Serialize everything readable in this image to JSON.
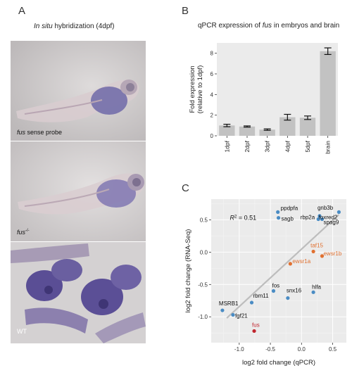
{
  "panel_a": {
    "letter": "A",
    "title_italic": "In situ",
    "title_rest": " hybridization (4dpf)",
    "images": [
      {
        "label_italic": "fus",
        "label_rest": " sense probe"
      },
      {
        "label_italic": "fus",
        "label_sup": "-/-",
        "label_rest": ""
      },
      {
        "label_italic": "",
        "label_rest": "WT"
      }
    ]
  },
  "panel_b": {
    "letter": "B",
    "title_pre": "qPCR expression of ",
    "title_italic": "fus",
    "title_post": " in embryos and brain"
  },
  "panel_c": {
    "letter": "C",
    "r2_label": "R",
    "r2_sup": "2",
    "r2_value": " = 0.51"
  },
  "chart_data": [
    {
      "type": "bar",
      "title": "qPCR expression of fus in embryos and brain",
      "ylabel": "Fold expression (relative to 1dpf)",
      "categories": [
        "1dpf",
        "2dpf",
        "3dpf",
        "4dpf",
        "5dpf",
        "brain"
      ],
      "values": [
        1.0,
        0.9,
        0.6,
        1.8,
        1.75,
        8.2
      ],
      "errors": [
        0.12,
        0.06,
        0.07,
        0.28,
        0.17,
        0.32
      ],
      "ylim": [
        0,
        9
      ],
      "yticks": [
        0,
        2,
        4,
        6,
        8
      ],
      "bar_color": "#c2c2c2",
      "grid": false
    },
    {
      "type": "scatter",
      "xlabel": "log2 fold change (qPCR)",
      "ylabel": "log2 fold change (RNA-Seq)",
      "xlim": [
        -1.45,
        0.72
      ],
      "ylim": [
        -1.4,
        0.82
      ],
      "xticks": [
        -1.0,
        -0.5,
        0.0,
        0.5
      ],
      "yticks": [
        -1.0,
        -0.5,
        0.0,
        0.5
      ],
      "background": "#ebebeb",
      "grid": true,
      "annotation": "R2 = 0.51",
      "regression_line": {
        "x": [
          -1.2,
          0.6
        ],
        "y": [
          -1.02,
          0.58
        ],
        "color": "#bdbdbd"
      },
      "points": [
        {
          "label": "ppdpfa",
          "x": -0.38,
          "y": 0.62,
          "color": "#4a8cc4"
        },
        {
          "label": "sagb",
          "x": -0.37,
          "y": 0.53,
          "color": "#4a8cc4"
        },
        {
          "label": "gnb3b",
          "x": 0.29,
          "y": 0.56,
          "color": "#4a8cc4"
        },
        {
          "label": "rbp2a",
          "x": 0.27,
          "y": 0.51,
          "color": "#4a8cc4"
        },
        {
          "label": "spag9",
          "x": 0.33,
          "y": 0.51,
          "color": "#4a8cc4"
        },
        {
          "label": "foxred2",
          "x": 0.6,
          "y": 0.62,
          "color": "#4a8cc4"
        },
        {
          "label": "taf15",
          "x": 0.19,
          "y": 0.01,
          "color": "#e07030"
        },
        {
          "label": "ewsr1b",
          "x": 0.33,
          "y": -0.06,
          "color": "#e07030"
        },
        {
          "label": "ewsr1a",
          "x": -0.18,
          "y": -0.18,
          "color": "#e07030"
        },
        {
          "label": "fos",
          "x": -0.45,
          "y": -0.6,
          "color": "#4a8cc4"
        },
        {
          "label": "hlfa",
          "x": 0.19,
          "y": -0.62,
          "color": "#4a8cc4"
        },
        {
          "label": "snx16",
          "x": -0.22,
          "y": -0.71,
          "color": "#4a8cc4"
        },
        {
          "label": "rbm11",
          "x": -0.8,
          "y": -0.78,
          "color": "#4a8cc4"
        },
        {
          "label": "MSRB1",
          "x": -1.27,
          "y": -0.9,
          "color": "#4a8cc4"
        },
        {
          "label": "fgf21",
          "x": -1.1,
          "y": -0.97,
          "color": "#4a8cc4"
        },
        {
          "label": "fus",
          "x": -0.76,
          "y": -1.22,
          "color": "#c0262e"
        }
      ]
    }
  ]
}
